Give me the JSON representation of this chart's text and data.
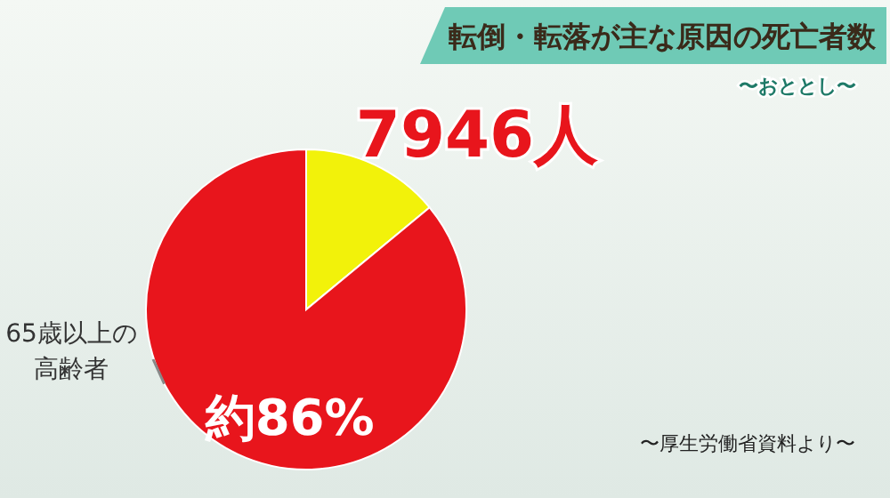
{
  "chart_data": {
    "type": "pie",
    "title": "転倒・転落が主な原因の死亡者数",
    "subtitle": "〜おととし〜",
    "categories": [
      null,
      "65歳以上の高齢者"
    ],
    "values": [
      14,
      86
    ],
    "colors": [
      "#f2f20a",
      "#e8151c"
    ],
    "value_labels": [
      null,
      "約86%"
    ],
    "annotations": [
      "7946人",
      "〜厚生労働省資料より〜"
    ]
  }
}
